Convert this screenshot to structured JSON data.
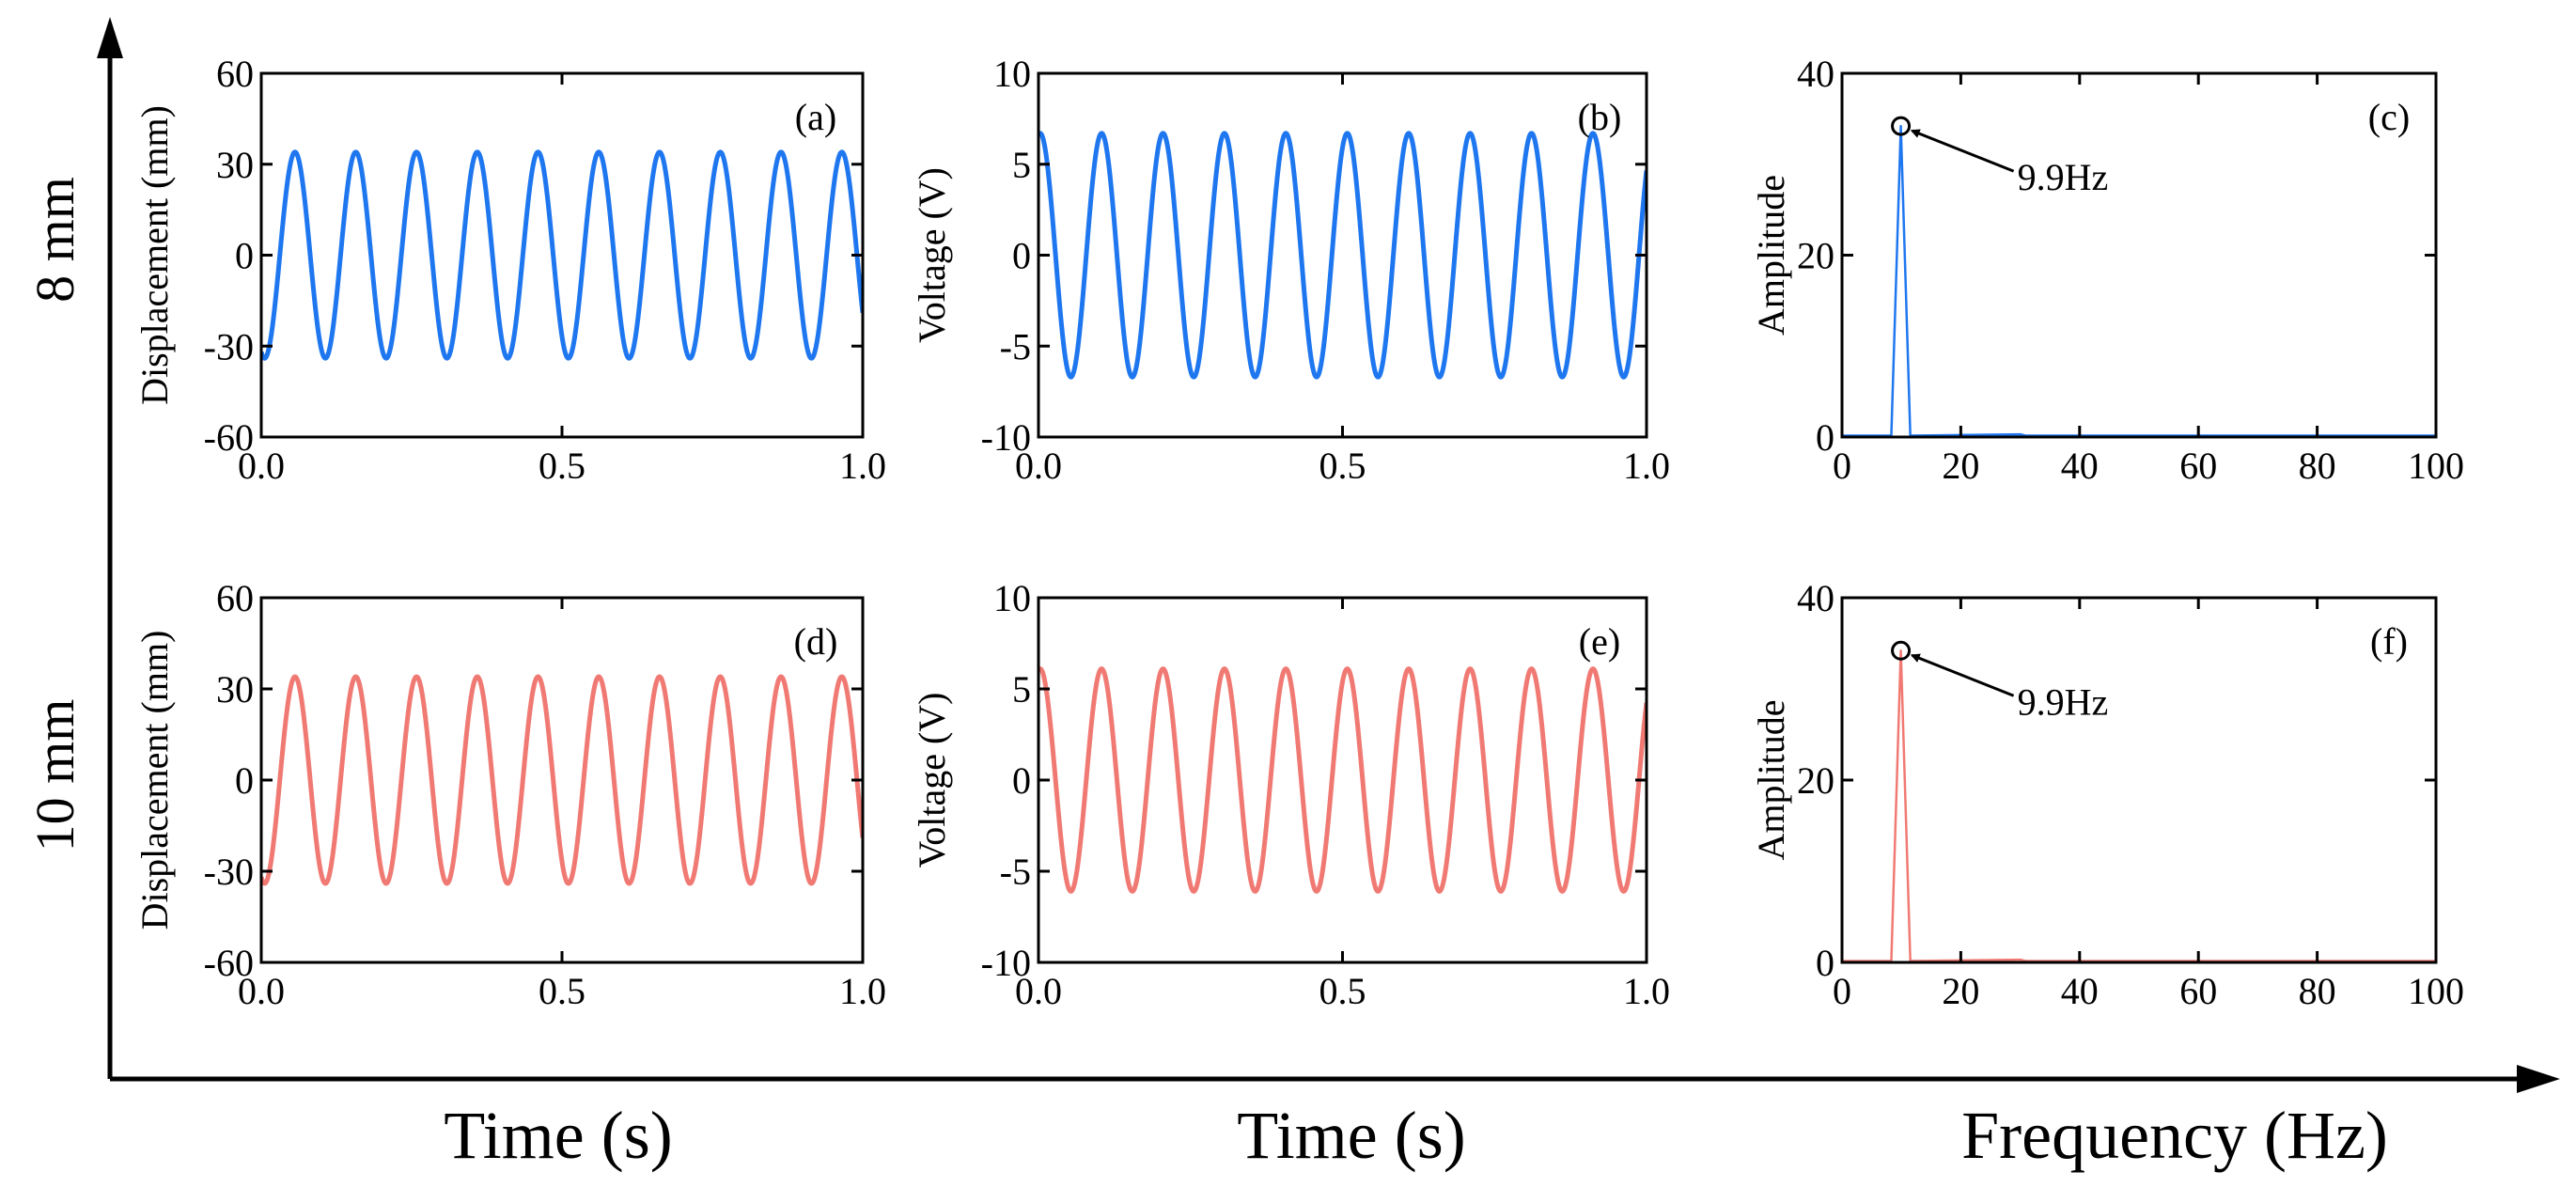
{
  "colors": {
    "row1": "#1f77f0",
    "row2": "#f07a73",
    "axis": "#000000"
  },
  "outer_axes": {
    "x_titles": [
      "Time (s)",
      "Time (s)",
      "Frequency (Hz)"
    ],
    "row_titles": [
      "8 mm",
      "10 mm"
    ]
  },
  "chart_data": [
    {
      "id": "a",
      "panel_label": "(a)",
      "type": "line",
      "row": 0,
      "col": 0,
      "ylabel": "Displacement (mm)",
      "xlim": [
        0,
        1
      ],
      "ylim": [
        -60,
        60
      ],
      "xticks": [
        "0.0",
        "0.5",
        "1.0"
      ],
      "yticks": [
        "60",
        "30",
        "0",
        "-30",
        "-60"
      ],
      "signal": {
        "kind": "sine",
        "amplitude": 34,
        "frequency": 9.9,
        "phase_deg": 250,
        "color": "row1"
      }
    },
    {
      "id": "b",
      "panel_label": "(b)",
      "type": "line",
      "row": 0,
      "col": 1,
      "ylabel": "Voltage (V)",
      "xlim": [
        0,
        1
      ],
      "ylim": [
        -10,
        10
      ],
      "xticks": [
        "0.0",
        "0.5",
        "1.0"
      ],
      "yticks": [
        "10",
        "5",
        "0",
        "-5",
        "-10"
      ],
      "signal": {
        "kind": "sine",
        "amplitude": 6.7,
        "frequency": 9.9,
        "phase_deg": 80,
        "color": "row1"
      }
    },
    {
      "id": "c",
      "panel_label": "(c)",
      "type": "line",
      "row": 0,
      "col": 2,
      "ylabel": "Amplitude",
      "xlim": [
        0,
        100
      ],
      "ylim": [
        0,
        40
      ],
      "xticks": [
        "0",
        "20",
        "40",
        "60",
        "80",
        "100"
      ],
      "yticks": [
        "40",
        "20",
        "0"
      ],
      "spectrum": {
        "peak_freq": 9.9,
        "peak_amp": 34.2,
        "color": "row1"
      },
      "annotation": {
        "text": "9.9Hz",
        "x": 9.9,
        "y": 34.2
      }
    },
    {
      "id": "d",
      "panel_label": "(d)",
      "type": "line",
      "row": 1,
      "col": 0,
      "ylabel": "Displacement (mm)",
      "xlim": [
        0,
        1
      ],
      "ylim": [
        -60,
        60
      ],
      "xticks": [
        "0.0",
        "0.5",
        "1.0"
      ],
      "yticks": [
        "60",
        "30",
        "0",
        "-30",
        "-60"
      ],
      "signal": {
        "kind": "sine",
        "amplitude": 34,
        "frequency": 9.9,
        "phase_deg": 250,
        "color": "row2"
      }
    },
    {
      "id": "e",
      "panel_label": "(e)",
      "type": "line",
      "row": 1,
      "col": 1,
      "ylabel": "Voltage (V)",
      "xlim": [
        0,
        1
      ],
      "ylim": [
        -10,
        10
      ],
      "xticks": [
        "0.0",
        "0.5",
        "1.0"
      ],
      "yticks": [
        "10",
        "5",
        "0",
        "-5",
        "-10"
      ],
      "signal": {
        "kind": "sine",
        "amplitude": 6.1,
        "frequency": 9.9,
        "phase_deg": 80,
        "color": "row2"
      }
    },
    {
      "id": "f",
      "panel_label": "(f)",
      "type": "line",
      "row": 1,
      "col": 2,
      "ylabel": "Amplitude",
      "xlim": [
        0,
        100
      ],
      "ylim": [
        0,
        40
      ],
      "xticks": [
        "0",
        "20",
        "40",
        "60",
        "80",
        "100"
      ],
      "yticks": [
        "40",
        "20",
        "0"
      ],
      "spectrum": {
        "peak_freq": 9.9,
        "peak_amp": 34.2,
        "color": "row2"
      },
      "annotation": {
        "text": "9.9Hz",
        "x": 9.9,
        "y": 34.2
      }
    }
  ]
}
